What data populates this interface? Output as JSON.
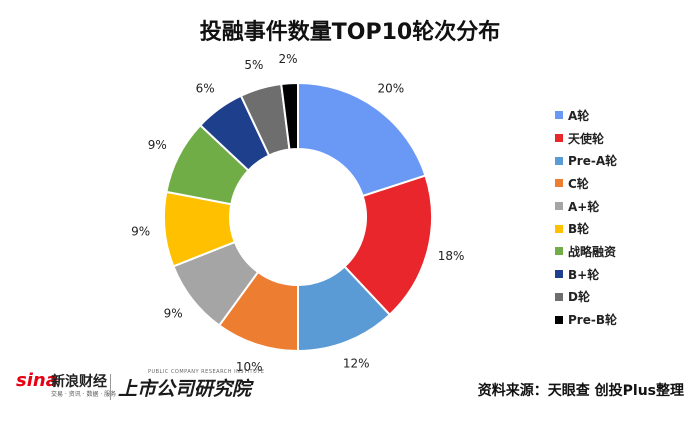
{
  "chart_data": {
    "type": "pie",
    "title": "投融事件数量TOP10轮次分布",
    "categories": [
      "A轮",
      "天使轮",
      "Pre-A轮",
      "C轮",
      "A+轮",
      "B轮",
      "战略融资",
      "B+轮",
      "D轮",
      "Pre-B轮"
    ],
    "values": [
      20,
      18,
      12,
      10,
      9,
      9,
      9,
      6,
      5,
      2
    ],
    "value_labels": [
      "20%",
      "18%",
      "12%",
      "10%",
      "9%",
      "9%",
      "9%",
      "6%",
      "5%",
      "2%"
    ],
    "colors": [
      "#6a99f5",
      "#e8262b",
      "#5b9bd5",
      "#ed7d31",
      "#a5a5a5",
      "#ffc000",
      "#70ad47",
      "#1e3f8c",
      "#6e6e6e",
      "#000000"
    ],
    "donut": true,
    "legend_position": "right"
  },
  "footer": {
    "sina_word": "sina",
    "sina_brand": "新浪财经",
    "sina_tagline": "交易 · 资讯 · 数据 · 服务",
    "institute_brand": "上市公司研究院",
    "institute_sub": "PUBLIC COMPANY RESEARCH INSTITUTE",
    "source_note": "资料来源：天眼查 创投Plus整理"
  }
}
